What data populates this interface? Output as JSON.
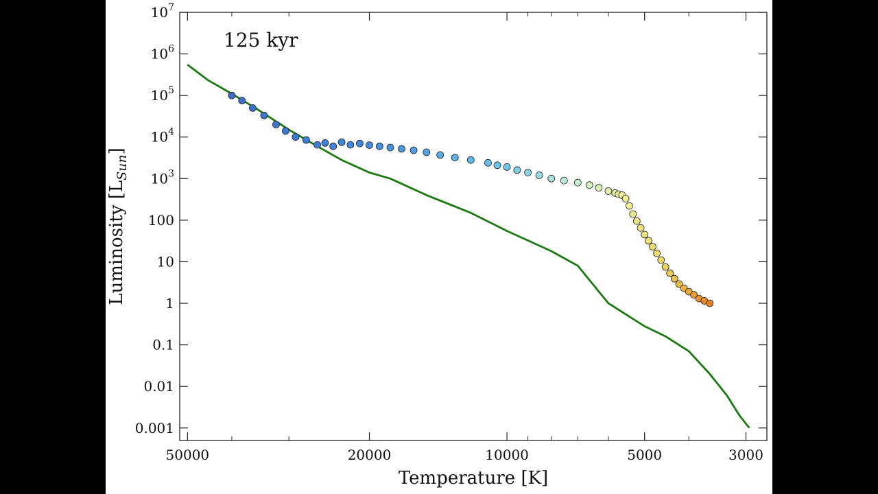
{
  "chart_data": {
    "type": "scatter",
    "title": "",
    "annotation": "125 kyr",
    "xlabel": "Temperature [K]",
    "ylabel_main": "Luminosity [L",
    "ylabel_sub": "Sun",
    "ylabel_close": "]",
    "x_scale": "log",
    "y_scale": "log",
    "x_reversed": true,
    "xlim": [
      52000,
      2700
    ],
    "ylim": [
      0.0005,
      10000000
    ],
    "grid": false,
    "legend": "none",
    "x_ticks": [
      {
        "value": 50000,
        "label": "50000"
      },
      {
        "value": 20000,
        "label": "20000"
      },
      {
        "value": 10000,
        "label": "10000"
      },
      {
        "value": 5000,
        "label": "5000"
      },
      {
        "value": 3000,
        "label": "3000"
      }
    ],
    "y_ticks": [
      {
        "value": 10000000,
        "base": "10",
        "exp": "7"
      },
      {
        "value": 1000000,
        "base": "10",
        "exp": "6"
      },
      {
        "value": 100000,
        "base": "10",
        "exp": "5"
      },
      {
        "value": 10000,
        "base": "10",
        "exp": "4"
      },
      {
        "value": 1000,
        "base": "10",
        "exp": "3"
      },
      {
        "value": 100,
        "base": "100",
        "exp": ""
      },
      {
        "value": 10,
        "base": "10",
        "exp": ""
      },
      {
        "value": 1,
        "base": "1",
        "exp": ""
      },
      {
        "value": 0.1,
        "base": "0.1",
        "exp": ""
      },
      {
        "value": 0.01,
        "base": "0.01",
        "exp": ""
      },
      {
        "value": 0.001,
        "base": "0.001",
        "exp": ""
      }
    ],
    "zams_line": {
      "color": "#1a7a10",
      "x": [
        50000,
        45000,
        40000,
        35000,
        30000,
        26000,
        23000,
        20000,
        18000,
        15000,
        12000,
        10000,
        8000,
        7000,
        6000,
        5000,
        4500,
        4000,
        3600,
        3300,
        3100,
        2950
      ],
      "y": [
        550000,
        230000,
        110000,
        45000,
        15000,
        6000,
        2800,
        1400,
        1000,
        400,
        150,
        55,
        18,
        8,
        1.0,
        0.28,
        0.16,
        0.07,
        0.02,
        0.006,
        0.002,
        0.001
      ]
    },
    "stars": {
      "x": [
        40000,
        38000,
        36000,
        34000,
        32000,
        30500,
        29000,
        27500,
        26000,
        25000,
        24000,
        23000,
        22000,
        21000,
        20000,
        19000,
        18000,
        17000,
        16000,
        15000,
        14000,
        13000,
        12000,
        11000,
        10500,
        10000,
        9500,
        9000,
        8500,
        8000,
        7500,
        7000,
        6600,
        6300,
        6000,
        5800,
        5700,
        5600,
        5500,
        5400,
        5300,
        5200,
        5100,
        5000,
        4900,
        4800,
        4700,
        4600,
        4500,
        4400,
        4300,
        4200,
        4100,
        4000,
        3900,
        3800,
        3700,
        3600
      ],
      "y": [
        100000,
        75000,
        50000,
        33000,
        20000,
        14000,
        10000,
        8500,
        6500,
        7200,
        6000,
        7500,
        6500,
        7000,
        6400,
        6000,
        5600,
        5200,
        4800,
        4300,
        3700,
        3200,
        2800,
        2400,
        2100,
        1900,
        1600,
        1400,
        1200,
        1000,
        900,
        800,
        700,
        600,
        500,
        450,
        420,
        400,
        330,
        220,
        140,
        95,
        65,
        45,
        32,
        23,
        16,
        11,
        7.5,
        5.3,
        3.9,
        2.9,
        2.3,
        1.9,
        1.6,
        1.3,
        1.15,
        1.0
      ]
    }
  }
}
